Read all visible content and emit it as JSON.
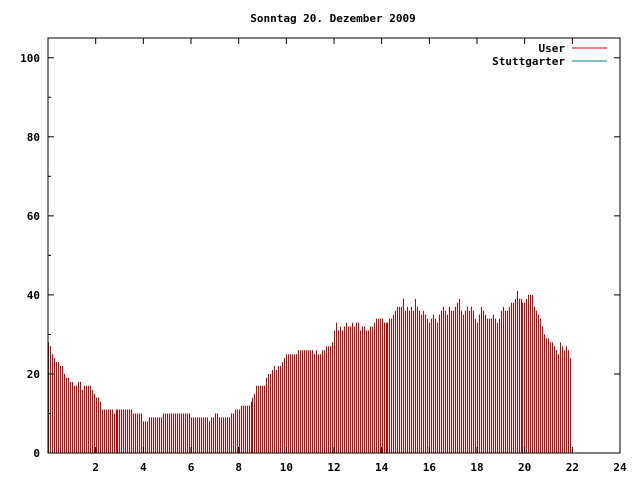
{
  "chart_data": {
    "type": "bar",
    "title": "Sonntag 20. Dezember 2009",
    "xlabel": "",
    "ylabel": "",
    "xlim": [
      0,
      24
    ],
    "ylim": [
      0,
      105
    ],
    "x_ticks": [
      2,
      4,
      6,
      8,
      10,
      12,
      14,
      16,
      18,
      20,
      22,
      24
    ],
    "y_ticks": [
      0,
      20,
      40,
      60,
      80,
      100
    ],
    "grid": false,
    "legend_position": "top-right",
    "series": [
      {
        "name": "User",
        "color": "#cc0000",
        "x_start": 0,
        "x_step": 0.0833,
        "values": [
          28,
          27,
          25,
          24,
          23,
          23,
          22,
          22,
          20,
          19,
          19,
          18,
          18,
          17,
          17,
          18,
          18,
          16,
          17,
          17,
          17,
          17,
          16,
          15,
          14,
          14,
          13,
          11,
          11,
          11,
          11,
          11,
          11,
          10,
          11,
          11,
          11,
          11,
          11,
          11,
          11,
          11,
          11,
          10,
          10,
          10,
          10,
          10,
          8,
          8,
          8,
          9,
          9,
          9,
          9,
          9,
          9,
          9,
          10,
          10,
          10,
          10,
          10,
          10,
          10,
          10,
          10,
          10,
          10,
          10,
          10,
          10,
          9,
          9,
          9,
          9,
          9,
          9,
          9,
          9,
          9,
          8,
          9,
          9,
          10,
          10,
          9,
          9,
          9,
          9,
          9,
          9,
          10,
          10,
          11,
          11,
          11,
          12,
          12,
          12,
          12,
          12,
          13,
          14,
          15,
          17,
          17,
          17,
          17,
          17,
          19,
          20,
          20,
          21,
          22,
          21,
          22,
          22,
          23,
          24,
          25,
          25,
          25,
          25,
          25,
          25,
          26,
          26,
          26,
          26,
          26,
          26,
          26,
          26,
          25,
          26,
          25,
          25,
          26,
          26,
          27,
          27,
          27,
          28,
          31,
          33,
          31,
          32,
          31,
          32,
          33,
          32,
          32,
          33,
          32,
          33,
          33,
          31,
          32,
          32,
          31,
          31,
          32,
          32,
          33,
          34,
          34,
          34,
          34,
          33,
          33,
          33,
          34,
          34,
          35,
          36,
          37,
          37,
          37,
          39,
          36,
          37,
          36,
          37,
          36,
          39,
          37,
          36,
          35,
          36,
          35,
          34,
          33,
          34,
          35,
          34,
          33,
          35,
          36,
          37,
          36,
          35,
          37,
          36,
          36,
          37,
          38,
          39,
          36,
          35,
          36,
          37,
          36,
          37,
          36,
          34,
          33,
          35,
          37,
          36,
          35,
          34,
          34,
          34,
          35,
          34,
          33,
          34,
          36,
          37,
          36,
          36,
          37,
          38,
          38,
          39,
          41,
          39,
          39,
          38,
          38,
          39,
          40,
          40,
          40,
          37,
          36,
          35,
          34,
          32,
          30,
          29,
          29,
          28,
          28,
          27,
          26,
          25,
          28,
          27,
          26,
          27,
          26,
          24
        ]
      },
      {
        "name": "Stuttgarter",
        "color": "#008080",
        "values": []
      }
    ]
  }
}
